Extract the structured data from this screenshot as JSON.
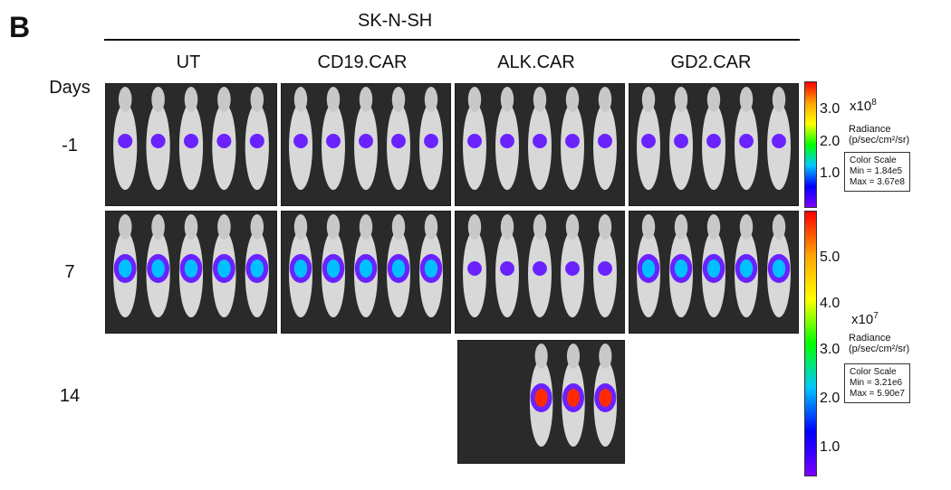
{
  "panel_label": "B",
  "cell_line": "SK-N-SH",
  "row_header": "Days",
  "groups": [
    "UT",
    "CD19.CAR",
    "ALK.CAR",
    "GD2.CAR"
  ],
  "days": [
    "-1",
    "7",
    "14"
  ],
  "scale_day_minus1": {
    "multiplier": "x10",
    "exponent": "8",
    "radiance_label_1": "Radiance",
    "radiance_label_2": "(p/sec/cm²/sr)",
    "ticks": [
      "3.0",
      "2.0",
      "1.0"
    ],
    "box_title": "Color Scale",
    "box_min": "Min = 1.84e5",
    "box_max": "Max = 3.67e8"
  },
  "scale_day7": {
    "multiplier": "x10",
    "exponent": "7",
    "radiance_label_1": "Radiance",
    "radiance_label_2": "(p/sec/cm²/sr)",
    "ticks": [
      "5.0",
      "4.0",
      "3.0",
      "2.0",
      "1.0"
    ],
    "box_title": "Color Scale",
    "box_min": "Min = 3.21e6",
    "box_max": "Max = 5.90e7"
  },
  "colors": {
    "bar_gradient": [
      "#ff0000",
      "#ffa500",
      "#ffff00",
      "#00ff00",
      "#00c8ff",
      "#0000ff",
      "#7a00ff"
    ],
    "panel_bg": "#2a2a2a",
    "mouse": "#d8d8d8"
  }
}
